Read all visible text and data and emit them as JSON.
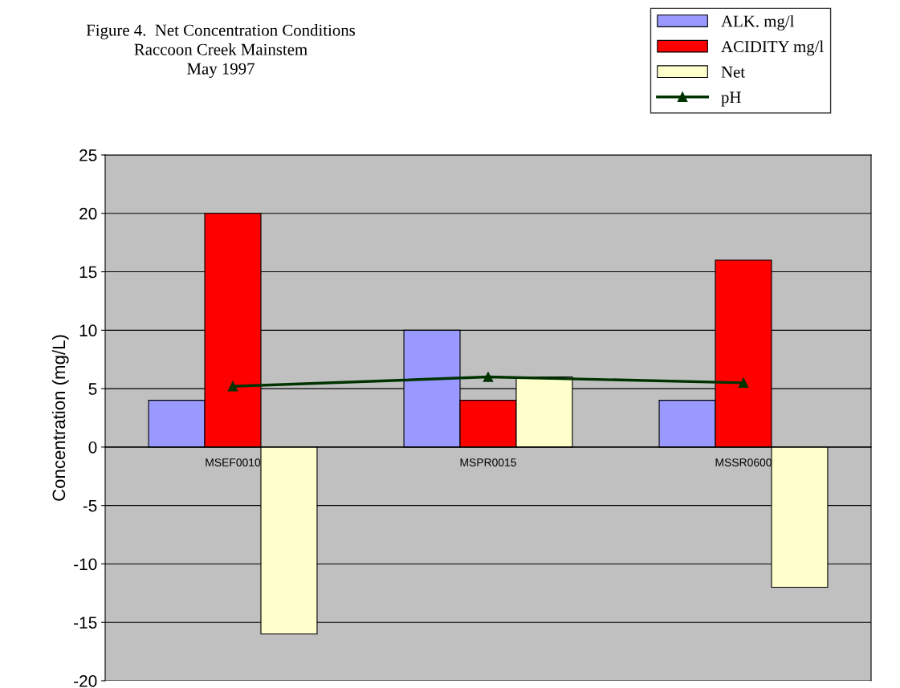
{
  "chart_data": {
    "type": "bar",
    "title": "Figure 4.  Net Concentration Conditions\nRaccoon Creek Mainstem\nMay 1997",
    "ylabel": "Concentration (mg/L)",
    "categories": [
      "MSEF0010",
      "MSPR0015",
      "MSSR0600"
    ],
    "series": [
      {
        "name": "ALK. mg/l",
        "color": "#9999ff",
        "values": [
          4,
          10,
          4
        ]
      },
      {
        "name": "ACIDITY mg/l",
        "color": "#ff0000",
        "values": [
          20,
          4,
          16
        ]
      },
      {
        "name": "Net",
        "color": "#ffffcc",
        "values": [
          -16,
          6,
          -12
        ]
      },
      {
        "name": "pH",
        "type": "line",
        "color": "#003300",
        "marker": "triangle",
        "values": [
          5.2,
          6.0,
          5.5
        ]
      }
    ],
    "ylim": [
      -20,
      25
    ],
    "yticks": [
      -20,
      -15,
      -10,
      -5,
      0,
      5,
      10,
      15,
      20,
      25
    ],
    "grid": "y",
    "legend": "top right"
  }
}
